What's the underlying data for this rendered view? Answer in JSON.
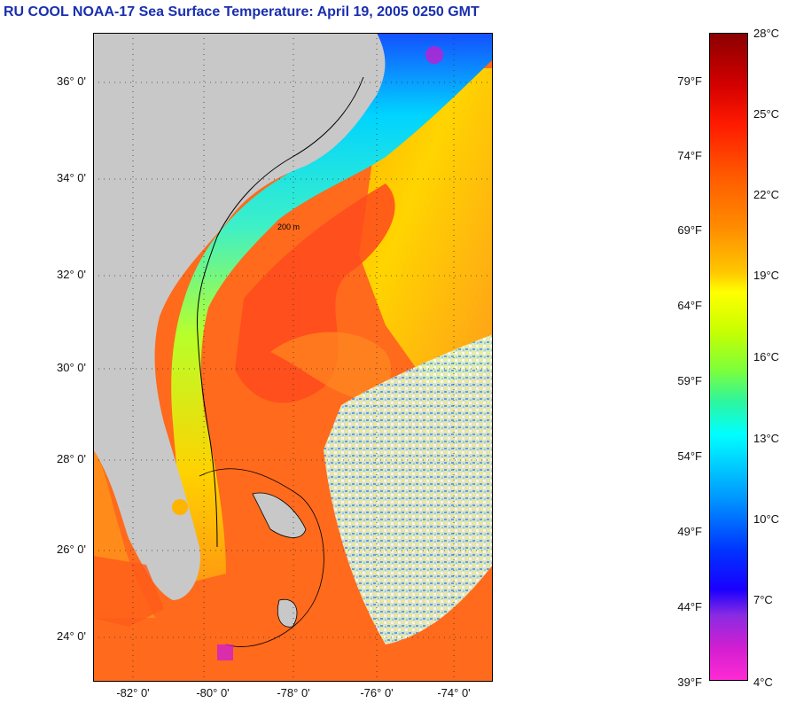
{
  "title": "RU COOL  NOAA-17  Sea Surface Temperature:  April 19, 2005 0250 GMT",
  "map": {
    "y_labels": [
      "36° 0'",
      "34° 0'",
      "32° 0'",
      "30° 0'",
      "28° 0'",
      "26° 0'",
      "24° 0'"
    ],
    "x_labels": [
      "-82° 0'",
      "-80° 0'",
      "-78° 0'",
      "-76° 0'",
      "-74° 0'"
    ],
    "contour_label": "200 m",
    "colors": {
      "land": "#c8c8c8",
      "warm": "#ff5a1a",
      "gulfstream": "#ff3b1c",
      "cool": "#00e5ff",
      "shelf": "#7dff3a"
    }
  },
  "colorbar": {
    "fahrenheit": [
      "79°F",
      "74°F",
      "69°F",
      "64°F",
      "59°F",
      "54°F",
      "49°F",
      "44°F",
      "39°F"
    ],
    "celsius": [
      "28°C",
      "25°C",
      "22°C",
      "19°C",
      "16°C",
      "13°C",
      "10°C",
      "7°C",
      "4°C"
    ]
  }
}
